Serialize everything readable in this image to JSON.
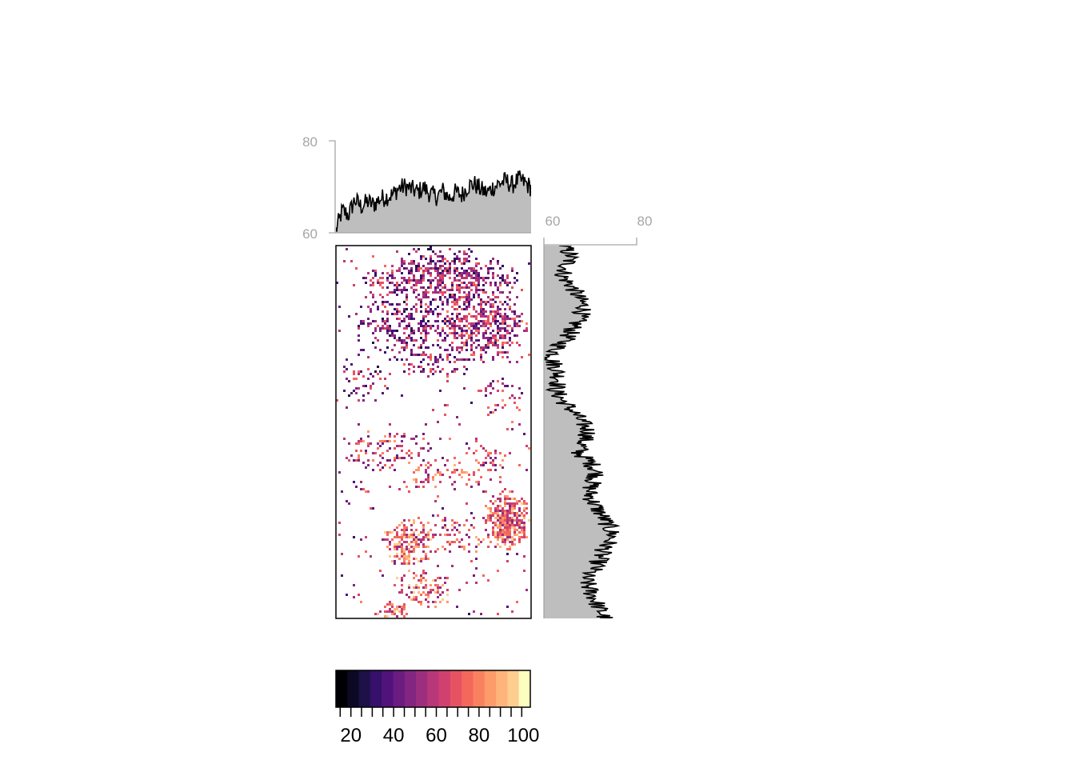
{
  "chart_data": {
    "type": "heatmap",
    "title": "",
    "xlabel": "",
    "ylabel": "",
    "raster": {
      "description_values": "spatial raster of values, many cells NA (white)",
      "value_range": [
        13,
        104
      ],
      "palette": "magma",
      "na_color": "#ffffff"
    },
    "top_profile": {
      "axis_range": [
        60,
        80
      ],
      "tick_labels": [
        "80",
        "60"
      ],
      "values": [
        60.5,
        64.8,
        63.9,
        67.2,
        65.7,
        66.8,
        66.1,
        67.4,
        67.8,
        68.3,
        69.7,
        70.1,
        69.5,
        68.9,
        69.8,
        68.4,
        67.9,
        69.1,
        67.6,
        68.8,
        68.2,
        70.2,
        70.6,
        69.4,
        68.7,
        69.9,
        70.8,
        71.3,
        70.4,
        71.6,
        70.9,
        69.8
      ]
    },
    "right_profile": {
      "axis_range": [
        60,
        80
      ],
      "tick_labels": [
        "60",
        "80"
      ],
      "values": [
        64.2,
        65.8,
        64.9,
        64.1,
        66.2,
        67.4,
        68.9,
        67.5,
        66.3,
        64.8,
        62.7,
        61.8,
        62.9,
        63.4,
        62.5,
        64.1,
        66.3,
        68.1,
        69.8,
        68.4,
        67.5,
        70.2,
        71.6,
        70.3,
        69.8,
        70.9,
        72.4,
        73.8,
        74.9,
        73.5,
        72.1,
        71.4,
        68.9,
        69.6,
        70.8,
        71.9,
        73.2
      ]
    },
    "legend": {
      "colors": [
        "#000004",
        "#0b0924",
        "#1d1147",
        "#36106b",
        "#51127c",
        "#6a1c81",
        "#832681",
        "#9c2e7f",
        "#b73779",
        "#d0416f",
        "#e75263",
        "#f4685c",
        "#fa815f",
        "#fd9b6b",
        "#feb47b",
        "#fecd90",
        "#fcfdbf"
      ],
      "range": [
        13,
        104
      ],
      "ticks": [
        20,
        40,
        60,
        80,
        100
      ],
      "tick_labels": [
        "20",
        "40",
        "60",
        "80",
        "100"
      ]
    }
  }
}
